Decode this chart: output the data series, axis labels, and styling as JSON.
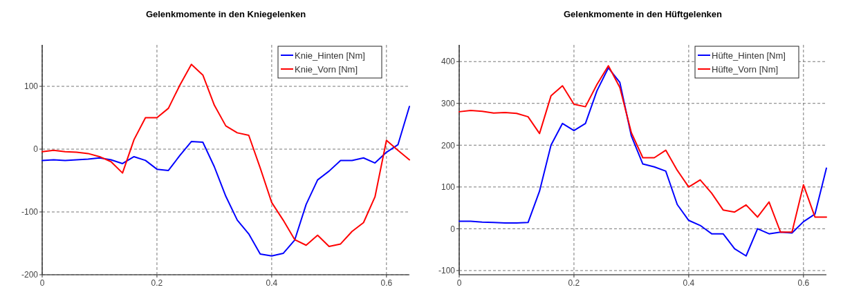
{
  "chart_data": [
    {
      "type": "line",
      "title": "Gelenkmomente in den Kniegelenken",
      "x": [
        0,
        0.02,
        0.04,
        0.06,
        0.08,
        0.1,
        0.12,
        0.14,
        0.16,
        0.18,
        0.2,
        0.22,
        0.24,
        0.26,
        0.28,
        0.3,
        0.32,
        0.34,
        0.36,
        0.38,
        0.4,
        0.42,
        0.44,
        0.46,
        0.48,
        0.5,
        0.52,
        0.54,
        0.56,
        0.58,
        0.6,
        0.62,
        0.64
      ],
      "series": [
        {
          "name": "Knie_Hinten [Nm]",
          "color": "#0000ff",
          "values": [
            -18,
            -17,
            -18,
            -17,
            -16,
            -14,
            -17,
            -23,
            -12,
            -18,
            -32,
            -34,
            -10,
            12,
            11,
            -28,
            -75,
            -113,
            -135,
            -167,
            -170,
            -166,
            -145,
            -88,
            -49,
            -35,
            -18,
            -18,
            -14,
            -22,
            -5,
            7,
            68
          ]
        },
        {
          "name": "Knie_Vorn [Nm]",
          "color": "#ff0000",
          "values": [
            -4,
            -2,
            -4,
            -5,
            -7,
            -12,
            -20,
            -38,
            15,
            50,
            50,
            65,
            102,
            135,
            118,
            70,
            37,
            26,
            22,
            -30,
            -85,
            -113,
            -144,
            -153,
            -137,
            -155,
            -151,
            -131,
            -117,
            -76,
            14,
            -2,
            -17
          ]
        }
      ],
      "xlim": [
        0,
        0.64
      ],
      "xticks": [
        0,
        0.2,
        0.4,
        0.6
      ],
      "ylim": [
        -200,
        166
      ],
      "yticks": [
        -200,
        -100,
        0,
        100
      ],
      "grid": true,
      "legend": "top right",
      "line_style": "solid",
      "marker": "none"
    },
    {
      "type": "line",
      "title": "Gelenkmomente in den Hüftgelenken",
      "x": [
        0,
        0.02,
        0.04,
        0.06,
        0.08,
        0.1,
        0.12,
        0.14,
        0.16,
        0.18,
        0.2,
        0.22,
        0.24,
        0.26,
        0.28,
        0.3,
        0.32,
        0.34,
        0.36,
        0.38,
        0.4,
        0.42,
        0.44,
        0.46,
        0.48,
        0.5,
        0.52,
        0.54,
        0.56,
        0.58,
        0.6,
        0.62,
        0.64
      ],
      "series": [
        {
          "name": "Hüfte_Hinten [Nm]",
          "color": "#0000ff",
          "values": [
            18,
            18,
            16,
            15,
            14,
            14,
            15,
            90,
            200,
            252,
            235,
            252,
            330,
            385,
            350,
            222,
            155,
            148,
            138,
            58,
            20,
            8,
            -12,
            -12,
            -48,
            -65,
            0,
            -12,
            -8,
            -10,
            17,
            35,
            145
          ]
        },
        {
          "name": "Hüfte_Vorn [Nm]",
          "color": "#ff0000",
          "values": [
            280,
            283,
            281,
            277,
            278,
            276,
            268,
            228,
            318,
            342,
            298,
            292,
            345,
            390,
            338,
            230,
            170,
            170,
            188,
            140,
            100,
            117,
            85,
            45,
            40,
            57,
            28,
            64,
            -8,
            -8,
            105,
            28,
            28
          ]
        }
      ],
      "xlim": [
        0,
        0.64
      ],
      "xticks": [
        0,
        0.2,
        0.4,
        0.6
      ],
      "ylim": [
        -110,
        440
      ],
      "yticks": [
        -100,
        0,
        100,
        200,
        300,
        400
      ],
      "grid": true,
      "legend": "top right",
      "line_style": "solid",
      "marker": "none"
    }
  ]
}
